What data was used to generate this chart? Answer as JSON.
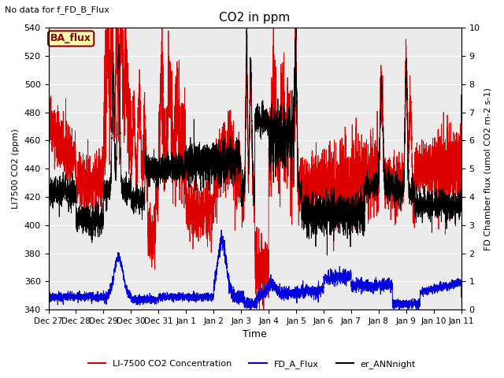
{
  "title": "CO2 in ppm",
  "no_data_text": "No data for f_FD_B_Flux",
  "ba_flux_label": "BA_flux",
  "xlabel": "Time",
  "ylabel_left": "LI7500 CO2 (ppm)",
  "ylabel_right": "FD Chamber flux (umol CO2 m-2 s-1)",
  "ylim_left": [
    340,
    540
  ],
  "ylim_right": [
    0.0,
    10.0
  ],
  "yticks_left": [
    340,
    360,
    380,
    400,
    420,
    440,
    460,
    480,
    500,
    520,
    540
  ],
  "yticks_right": [
    0.0,
    1.0,
    2.0,
    3.0,
    4.0,
    5.0,
    6.0,
    7.0,
    8.0,
    9.0,
    10.0
  ],
  "legend_entries": [
    {
      "label": "LI-7500 CO2 Concentration",
      "color": "#dd0000",
      "linestyle": "-"
    },
    {
      "label": "FD_A_Flux",
      "color": "#0000dd",
      "linestyle": "-"
    },
    {
      "label": "er_ANNnight",
      "color": "#000000",
      "linestyle": "-"
    }
  ],
  "ba_flux_box": {
    "facecolor": "#ffffaa",
    "edgecolor": "#8b0000",
    "textcolor": "#8b0000"
  },
  "plot_bg_color": "#ebebeb",
  "fig_bg_color": "#ffffff",
  "grid_color": "#ffffff",
  "xticklabels": [
    "Dec 27",
    "Dec 28",
    "Dec 29",
    "Dec 30",
    "Dec 31",
    "Jan 1",
    "Jan 2",
    "Jan 3",
    "Jan 4",
    "Jan 5",
    "Jan 6",
    "Jan 7",
    "Jan 8",
    "Jan 9",
    "Jan 10",
    "Jan 11"
  ],
  "seed": 42
}
